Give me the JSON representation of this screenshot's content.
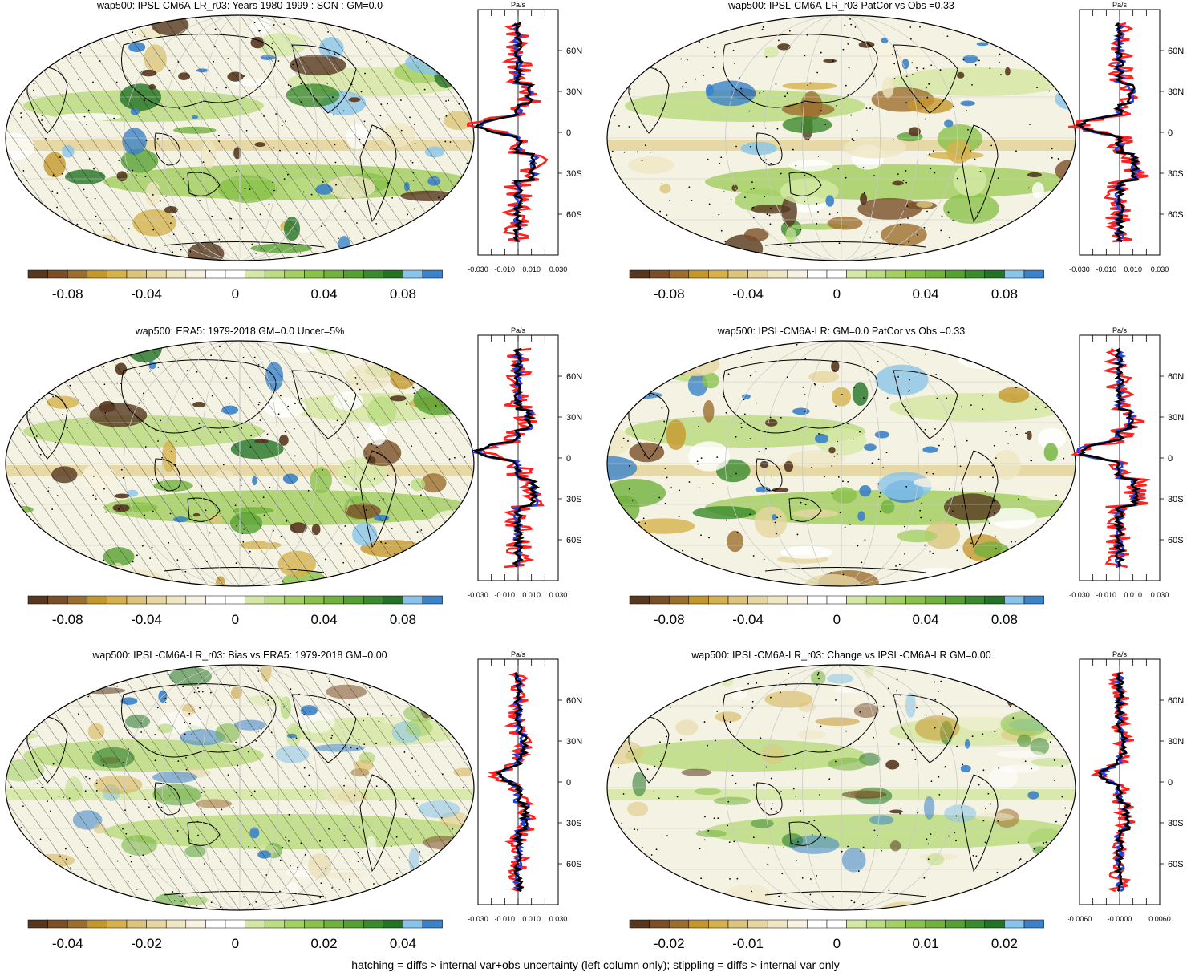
{
  "footer": "hatching = diffs > internal var+obs uncertainty (left column only); stippling = diffs > internal var only",
  "colors": {
    "scale": [
      "#56371f",
      "#7a4f28",
      "#9c6e2e",
      "#c4972c",
      "#d5b14e",
      "#dcc57a",
      "#e6d6a0",
      "#efe6c4",
      "#f7f2e1",
      "#ffffff",
      "#ffffff",
      "#d6e8a6",
      "#bcdc82",
      "#a3cf63",
      "#8ac14a",
      "#71b13c",
      "#56a033",
      "#3b8a2e",
      "#237326",
      "#88c4ea",
      "#3b82c9"
    ],
    "ocean_base": "#f4f2e2",
    "model": "#1f3fe0",
    "obs": "#000000",
    "diff": "#ff2020"
  },
  "chart_data": [
    {
      "type": "heatmap",
      "title": "wap500: IPSL-CM6A-LR_r03: Years 1980-1999 : SON : GM=0.0",
      "colorbar_ticks": [
        "-0.08",
        "-0.04",
        "0",
        "0.04",
        "0.08"
      ],
      "hatched": true,
      "profile": {
        "unit": "Pa/s",
        "xticks": [
          "-0.030",
          "-0.010",
          "0.010",
          "0.030"
        ],
        "lat_labels": [
          "60N",
          "30N",
          "0",
          "30S",
          "60S"
        ]
      }
    },
    {
      "type": "heatmap",
      "title": "wap500: IPSL-CM6A-LR_r03 PatCor vs Obs =0.33",
      "colorbar_ticks": [
        "-0.08",
        "-0.04",
        "0",
        "0.04",
        "0.08"
      ],
      "hatched": false,
      "profile": {
        "unit": "Pa/s",
        "xticks": [
          "-0.030",
          "-0.010",
          "0.010",
          "0.030"
        ],
        "lat_labels": [
          "60N",
          "30N",
          "0",
          "30S",
          "60S"
        ]
      }
    },
    {
      "type": "heatmap",
      "title": "wap500: ERA5: 1979-2018 GM=0.0 Uncer=5%",
      "colorbar_ticks": [
        "-0.08",
        "-0.04",
        "0",
        "0.04",
        "0.08"
      ],
      "hatched": true,
      "profile": {
        "unit": "Pa/s",
        "xticks": [
          "-0.030",
          "-0.010",
          "0.010",
          "0.030"
        ],
        "lat_labels": [
          "60N",
          "30N",
          "0",
          "30S",
          "60S"
        ]
      }
    },
    {
      "type": "heatmap",
      "title": "wap500: IPSL-CM6A-LR: GM=0.0 PatCor vs Obs =0.33",
      "colorbar_ticks": [
        "-0.08",
        "-0.04",
        "0",
        "0.04",
        "0.08"
      ],
      "hatched": false,
      "profile": {
        "unit": "Pa/s",
        "xticks": [
          "-0.030",
          "-0.010",
          "0.010",
          "0.030"
        ],
        "lat_labels": [
          "60N",
          "30N",
          "0",
          "30S",
          "60S"
        ]
      }
    },
    {
      "type": "heatmap",
      "title": "wap500: IPSL-CM6A-LR_r03: Bias vs ERA5: 1979-2018  GM=0.00",
      "colorbar_ticks": [
        "-0.04",
        "-0.02",
        "0",
        "0.02",
        "0.04"
      ],
      "hatched": true,
      "profile": {
        "unit": "Pa/s",
        "xticks": [
          "-0.030",
          "-0.010",
          "0.010",
          "0.030"
        ],
        "lat_labels": [
          "60N",
          "30N",
          "0",
          "30S",
          "60S"
        ]
      }
    },
    {
      "type": "heatmap",
      "title": "wap500: IPSL-CM6A-LR_r03: Change vs IPSL-CM6A-LR GM=0.00",
      "colorbar_ticks": [
        "-0.02",
        "-0.01",
        "0",
        "0.01",
        "0.02"
      ],
      "hatched": false,
      "profile": {
        "unit": "Pa/s",
        "xticks": [
          "-0.0060",
          "-0.0000",
          "0.0060"
        ],
        "lat_labels": [
          "60N",
          "30N",
          "0",
          "30S",
          "60S"
        ]
      }
    }
  ]
}
